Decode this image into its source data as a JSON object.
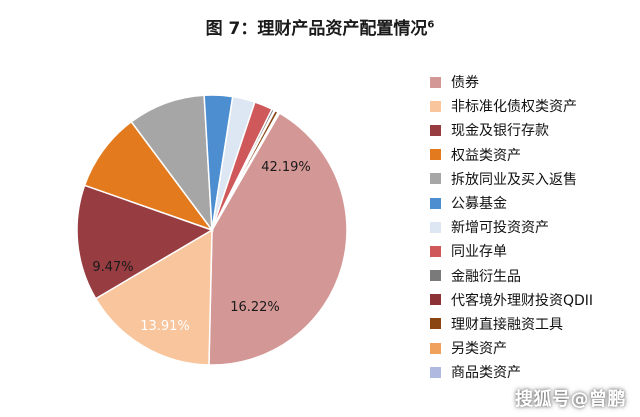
{
  "title_main": "图 7：理财产品资产配置情况",
  "title_note": "6",
  "watermark": "搜狐号@曾鹏",
  "chart_data": {
    "type": "pie",
    "title": "图 7：理财产品资产配置情况",
    "start_angle_deg": -60,
    "direction": "clockwise",
    "legend_position": "right",
    "slices": [
      {
        "label": "债券",
        "value": 42.19,
        "display": "42.19%",
        "color": "#d39796"
      },
      {
        "label": "非标准化债权类资产",
        "value": 16.22,
        "display": "16.22%",
        "color": "#f8c59c"
      },
      {
        "label": "现金及银行存款",
        "value": 13.91,
        "display": "13.91%",
        "color": "#973d41"
      },
      {
        "label": "权益类资产",
        "value": 9.47,
        "display": "9.47%",
        "color": "#e37a1d"
      },
      {
        "label": "拆放同业及买入返售",
        "value": 9.3,
        "display": "",
        "color": "#a6a6a6"
      },
      {
        "label": "公募基金",
        "value": 3.4,
        "display": "",
        "color": "#4d8ed0"
      },
      {
        "label": "新增可投资资产",
        "value": 2.7,
        "display": "",
        "color": "#dce7f3"
      },
      {
        "label": "同业存单",
        "value": 2.2,
        "display": "",
        "color": "#cf585b"
      },
      {
        "label": "金融衍生品",
        "value": 0.3,
        "display": "",
        "color": "#7a7a7a"
      },
      {
        "label": "代客境外理财投资QDII",
        "value": 0.1,
        "display": "",
        "color": "#8c3236"
      },
      {
        "label": "理财直接融资工具",
        "value": 0.4,
        "display": "",
        "color": "#8b4513"
      },
      {
        "label": "另类资产",
        "value": 0.1,
        "display": "",
        "color": "#f0a25c"
      },
      {
        "label": "商品类资产",
        "value": 0.1,
        "display": "",
        "color": "#b0b9e0"
      }
    ]
  }
}
